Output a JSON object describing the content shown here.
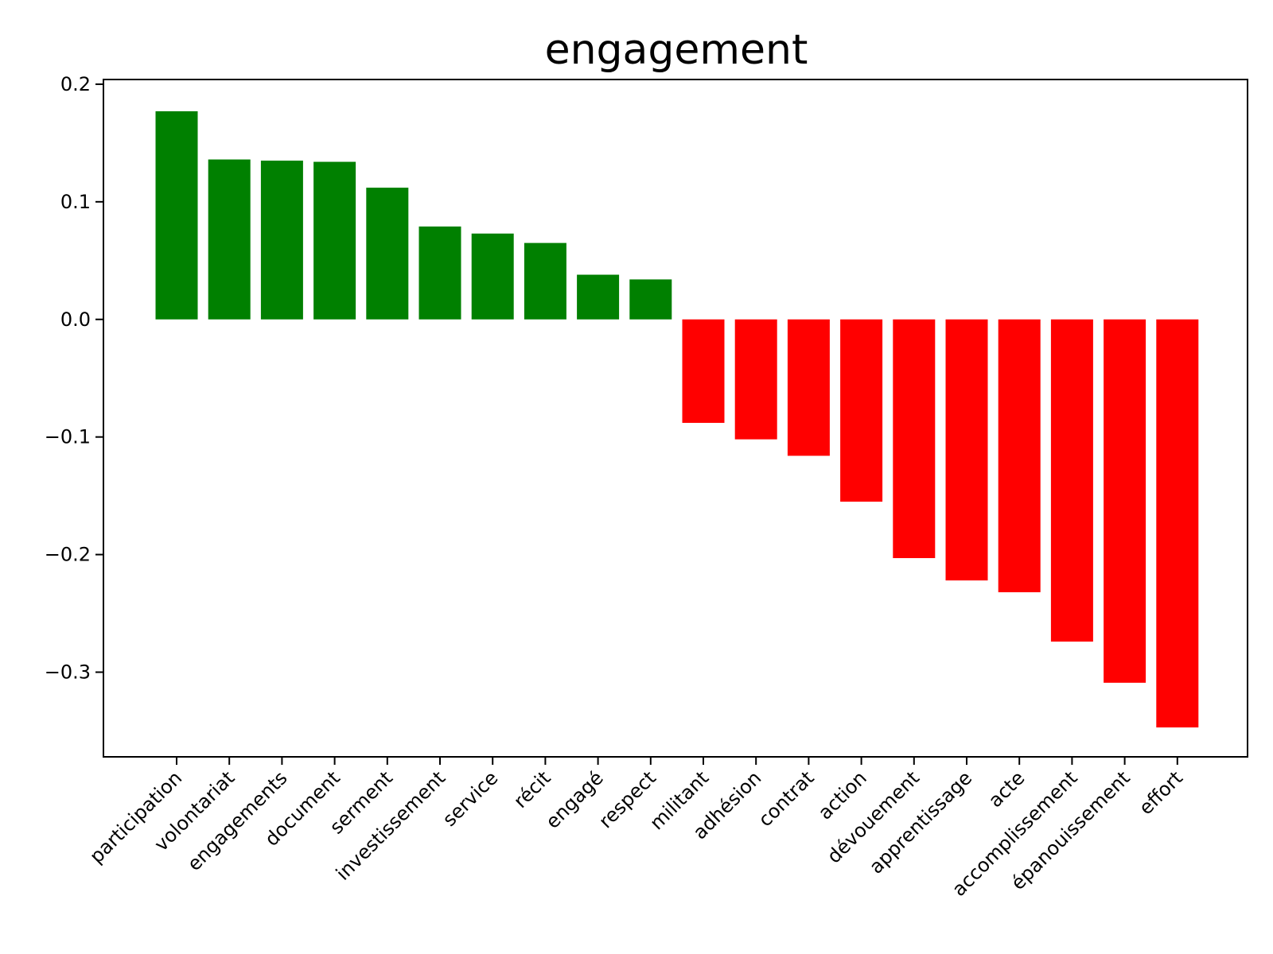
{
  "chart_data": {
    "type": "bar",
    "title": "engagement",
    "xlabel": "",
    "ylabel": "",
    "ylim": [
      -0.372,
      0.204
    ],
    "yticks": [
      0.2,
      0.1,
      0.0,
      -0.1,
      -0.2,
      -0.3
    ],
    "ytick_labels": [
      "0.2",
      "0.1",
      "0.0",
      "−0.1",
      "−0.2",
      "−0.3"
    ],
    "grid": false,
    "legend": "none",
    "colors": {
      "positive": "#008000",
      "negative": "#ff0000"
    },
    "categories": [
      "participation",
      "volontariat",
      "engagements",
      "document",
      "serment",
      "investissement",
      "service",
      "récit",
      "engagé",
      "respect",
      "militant",
      "adhésion",
      "contrat",
      "action",
      "dévouement",
      "apprentissage",
      "acte",
      "accomplissement",
      "épanouissement",
      "effort"
    ],
    "values": [
      0.177,
      0.136,
      0.135,
      0.134,
      0.112,
      0.079,
      0.073,
      0.065,
      0.038,
      0.034,
      -0.088,
      -0.102,
      -0.116,
      -0.155,
      -0.203,
      -0.222,
      -0.232,
      -0.274,
      -0.309,
      -0.347
    ]
  }
}
